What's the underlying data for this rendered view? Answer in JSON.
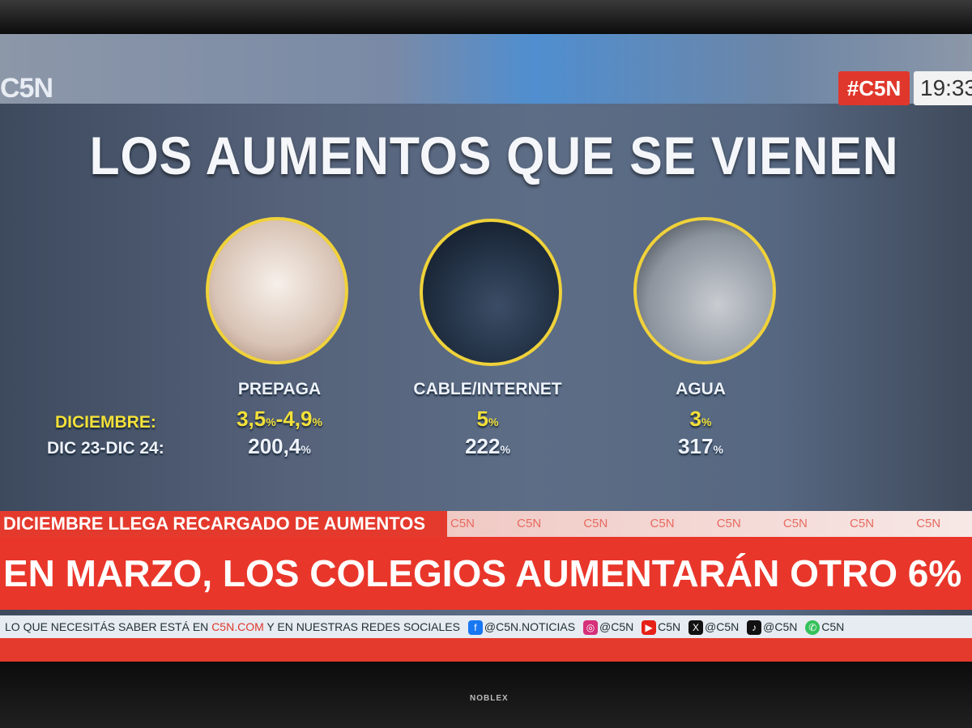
{
  "channel": {
    "logo": "C5N",
    "hashtag": "#C5N",
    "time": "19:33"
  },
  "graphic": {
    "title": "LOS AUMENTOS QUE SE VIENEN",
    "row_labels": {
      "month": "DICIEMBRE:",
      "year": "DIC 23-DIC 24:"
    },
    "items": [
      {
        "label": "PREPAGA",
        "month": "3,5%-4,9%",
        "year": "200,4%",
        "image": "clipboard-writing"
      },
      {
        "label": "CABLE/INTERNET",
        "month": "5%",
        "year": "222%",
        "image": "person-watching-tv"
      },
      {
        "label": "AGUA",
        "month": "3%",
        "year": "317%",
        "image": "glass-under-faucet"
      }
    ],
    "accent_color": "#f0d23a"
  },
  "lower_third": {
    "kicker": "DICIEMBRE LLEGA RECARGADO DE AUMENTOS",
    "watermark": "C5N C5N C5N C5N C5N C5N C5N C5N C5N",
    "headline": "EN MARZO, LOS COLEGIOS AUMENTARÁN OTRO 6%",
    "brand_red": "#e43a2d"
  },
  "ticker": {
    "prefix": "LO QUE NECESITÁS SABER ESTÁ EN ",
    "site": "C5N.COM",
    "suffix": " Y EN NUESTRAS REDES SOCIALES",
    "socials": [
      {
        "icon": "facebook-icon",
        "handle": "@C5N.NOTICIAS"
      },
      {
        "icon": "instagram-icon",
        "handle": "@C5N"
      },
      {
        "icon": "youtube-icon",
        "handle": "C5N"
      },
      {
        "icon": "x-icon",
        "handle": "@C5N"
      },
      {
        "icon": "tiktok-icon",
        "handle": "@C5N"
      },
      {
        "icon": "whatsapp-icon",
        "handle": "C5N"
      }
    ]
  },
  "tv_brand": "NOBLEX"
}
